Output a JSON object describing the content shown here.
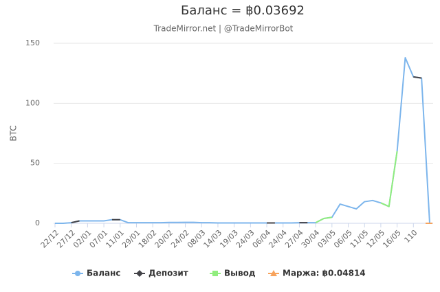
{
  "chart_data": {
    "type": "line",
    "title": "Баланс = ฿0.03692",
    "subtitle": "TradeMirror.net | @TradeMirrorBot",
    "y_label": "BTC",
    "categories": [
      "22/12",
      null,
      "27/12",
      null,
      "02/01",
      null,
      "07/01",
      null,
      "11/01",
      null,
      "29/01",
      null,
      "18/02",
      null,
      "20/02",
      null,
      "24/02",
      null,
      "08/03",
      null,
      "14/03",
      null,
      "19/03",
      null,
      "24/03",
      null,
      "06/04",
      null,
      "24/04",
      null,
      "27/04",
      null,
      "30/04",
      null,
      "03/05",
      null,
      "06/05",
      null,
      "11/05",
      null,
      "12/05",
      null,
      "16/05",
      null,
      "110",
      null,
      null
    ],
    "ylim": [
      0,
      150
    ],
    "yticks": [
      0,
      50,
      100,
      150
    ],
    "grid": true,
    "series": [
      {
        "name": "Баланс",
        "color": "#7cb5ec",
        "marker": "circle",
        "values": [
          0,
          0,
          0.5,
          2,
          2,
          2,
          2,
          3,
          3,
          0.5,
          0.5,
          0.5,
          0.5,
          0.5,
          0.7,
          0.7,
          0.8,
          0.8,
          0.5,
          0.5,
          0.3,
          0.3,
          0.3,
          0.3,
          0.3,
          0.3,
          0.3,
          0.3,
          0.3,
          0.3,
          0.5,
          0.5,
          0.5,
          4,
          5,
          16,
          14,
          12,
          18,
          19,
          17,
          14,
          60,
          138,
          122,
          121,
          0
        ]
      },
      {
        "name": "Депозит",
        "color": "#434348",
        "marker": "diamond",
        "values": [
          null,
          null,
          0.5,
          2,
          null,
          null,
          null,
          3,
          3,
          null,
          null,
          null,
          null,
          null,
          null,
          null,
          null,
          null,
          null,
          null,
          null,
          null,
          null,
          null,
          null,
          null,
          0.3,
          0.3,
          null,
          null,
          0.5,
          0.5,
          null,
          null,
          null,
          null,
          null,
          null,
          null,
          null,
          null,
          null,
          null,
          null,
          122,
          121,
          null
        ]
      },
      {
        "name": "Вывод",
        "color": "#90ed7d",
        "marker": "square",
        "values": [
          null,
          null,
          null,
          null,
          null,
          null,
          null,
          null,
          null,
          null,
          null,
          null,
          null,
          null,
          null,
          null,
          null,
          null,
          null,
          null,
          null,
          null,
          null,
          null,
          null,
          null,
          null,
          null,
          null,
          null,
          null,
          null,
          0.5,
          4,
          5,
          null,
          null,
          null,
          null,
          null,
          17,
          14,
          60,
          null,
          null,
          null,
          null
        ]
      },
      {
        "name": "Маржа: ฿0.04814",
        "color": "#f7a35c",
        "marker": "triangle",
        "values": [
          null,
          null,
          null,
          null,
          null,
          null,
          null,
          null,
          null,
          null,
          null,
          null,
          null,
          null,
          null,
          null,
          null,
          null,
          null,
          null,
          null,
          null,
          null,
          null,
          null,
          null,
          null,
          null,
          null,
          null,
          null,
          null,
          null,
          null,
          null,
          null,
          null,
          null,
          null,
          null,
          null,
          null,
          null,
          null,
          null,
          null,
          0
        ]
      }
    ]
  }
}
